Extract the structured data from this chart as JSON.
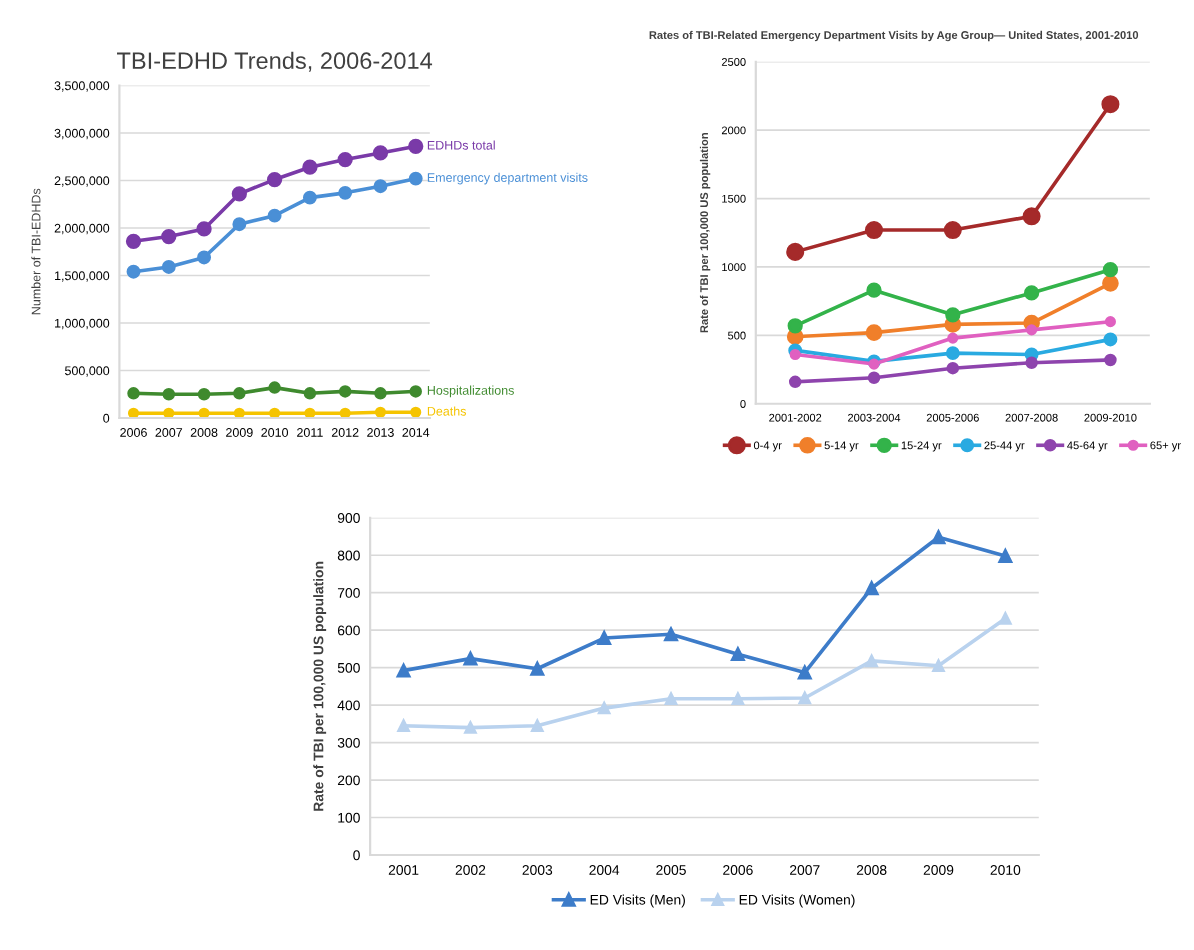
{
  "chart_data": [
    {
      "type": "line",
      "title": "TBI-EDHD Trends, 2006-2014",
      "ylabel": "Number of TBI-EDHDs",
      "x": [
        2006,
        2007,
        2008,
        2009,
        2010,
        2011,
        2012,
        2013,
        2014
      ],
      "xlim": [
        2005.6,
        2014.4
      ],
      "xticks": [
        2006,
        2007,
        2008,
        2009,
        2010,
        2011,
        2012,
        2013,
        2014
      ],
      "ylim": [
        0,
        3500000
      ],
      "yticks": [
        0,
        {
          "value": 500000,
          "label": "500,000"
        },
        {
          "value": 1000000,
          "label": "1,000,000"
        },
        {
          "value": 1500000,
          "label": "1,500,000"
        },
        {
          "value": 2000000,
          "label": "2,000,000"
        },
        {
          "value": 2500000,
          "label": "2,500,000"
        },
        {
          "value": 3000000,
          "label": "3,000,000"
        },
        {
          "value": 3500000,
          "label": "3,500,000"
        }
      ],
      "grid": "y",
      "marker": "circle",
      "legend": false,
      "series": [
        {
          "name": "EDHDs total",
          "color": "#7a3aa8",
          "values": [
            1860000,
            1910000,
            1990000,
            2360000,
            2510000,
            2640000,
            2720000,
            2790000,
            2860000
          ]
        },
        {
          "name": "Emergency department visits",
          "color": "#4a8fd6",
          "values": [
            1540000,
            1590000,
            1690000,
            2040000,
            2130000,
            2320000,
            2370000,
            2440000,
            2520000
          ]
        },
        {
          "name": "Hospitalizations",
          "color": "#3f8a2e",
          "values": [
            260000,
            250000,
            250000,
            260000,
            320000,
            260000,
            280000,
            260000,
            280000
          ]
        },
        {
          "name": "Deaths",
          "color": "#f5c400",
          "values": [
            50000,
            50000,
            50000,
            50000,
            50000,
            50000,
            50000,
            60000,
            60000
          ]
        }
      ]
    },
    {
      "type": "line",
      "title": "Rates of TBI-Related Emergency Department Visits by Age Group— United States, 2001-2010",
      "ylabel": "Rate of TBI per 100,000 US population",
      "categories": [
        "2001-2002",
        "2003-2004",
        "2005-2006",
        "2007-2008",
        "2009-2010"
      ],
      "ylim": [
        0,
        2500
      ],
      "yticks": [
        0,
        500,
        1000,
        1500,
        2000,
        2500
      ],
      "grid": "y",
      "marker": "circle",
      "legend": "bottom",
      "series": [
        {
          "name": "0-4 yr",
          "color": "#a52a2a",
          "values": [
            1110,
            1270,
            1270,
            1370,
            2190
          ]
        },
        {
          "name": "5-14 yr",
          "color": "#f07f2a",
          "values": [
            490,
            520,
            580,
            590,
            880
          ]
        },
        {
          "name": "15-24 yr",
          "color": "#33b34a",
          "values": [
            570,
            830,
            650,
            810,
            980
          ]
        },
        {
          "name": "25-44 yr",
          "color": "#29aae1",
          "values": [
            390,
            310,
            370,
            360,
            470
          ]
        },
        {
          "name": "45-64 yr",
          "color": "#8e44ad",
          "values": [
            160,
            190,
            260,
            300,
            320
          ]
        },
        {
          "name": "65+ yr",
          "color": "#e060c0",
          "values": [
            360,
            290,
            480,
            540,
            600
          ]
        }
      ]
    },
    {
      "type": "line",
      "ylabel": "Rate of TBI per 100,000 US population",
      "categories": [
        "2001",
        "2002",
        "2003",
        "2004",
        "2005",
        "2006",
        "2007",
        "2008",
        "2009",
        "2010"
      ],
      "ylim": [
        0,
        900
      ],
      "yticks": [
        0,
        100,
        200,
        300,
        400,
        500,
        600,
        700,
        800,
        900
      ],
      "grid": "y",
      "marker": "triangle",
      "legend": "bottom",
      "series": [
        {
          "name": "ED Visits (Men)",
          "color": "#3d7cc9",
          "values": [
            492,
            524,
            497,
            579,
            589,
            536,
            487,
            712,
            848,
            798
          ]
        },
        {
          "name": "ED Visits (Women)",
          "color": "#b9d2ee",
          "values": [
            345,
            340,
            345,
            392,
            417,
            417,
            419,
            518,
            505,
            631
          ]
        }
      ]
    }
  ]
}
